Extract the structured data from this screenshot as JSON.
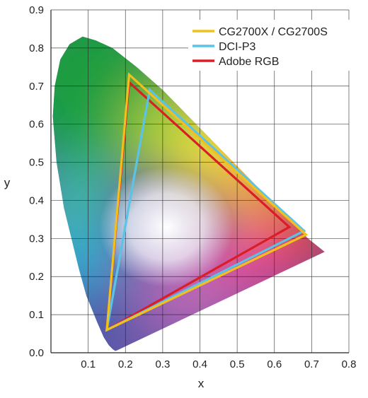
{
  "chart_data": {
    "type": "scatter",
    "title": "",
    "xlabel": "x",
    "ylabel": "y",
    "xlim": [
      0.0,
      0.8
    ],
    "ylim": [
      0.0,
      0.9
    ],
    "x_ticks": [
      0.1,
      0.2,
      0.3,
      0.4,
      0.5,
      0.6,
      0.7,
      0.8
    ],
    "y_ticks": [
      0.0,
      0.1,
      0.2,
      0.3,
      0.4,
      0.5,
      0.6,
      0.7,
      0.8,
      0.9
    ],
    "x_tick_labels": [
      "0.1",
      "0.2",
      "0.3",
      "0.4",
      "0.5",
      "0.6",
      "0.7",
      "0.8"
    ],
    "y_tick_labels": [
      "0.0",
      "0.1",
      "0.2",
      "0.3",
      "0.4",
      "0.5",
      "0.6",
      "0.7",
      "0.8",
      "0.9"
    ],
    "grid": true,
    "legend_position": "top-right",
    "spectral_locus": [
      [
        0.175,
        0.005
      ],
      [
        0.172,
        0.005
      ],
      [
        0.165,
        0.01
      ],
      [
        0.155,
        0.02
      ],
      [
        0.142,
        0.04
      ],
      [
        0.124,
        0.08
      ],
      [
        0.095,
        0.15
      ],
      [
        0.075,
        0.22
      ],
      [
        0.055,
        0.3
      ],
      [
        0.035,
        0.38
      ],
      [
        0.015,
        0.5
      ],
      [
        0.005,
        0.62
      ],
      [
        0.01,
        0.7
      ],
      [
        0.025,
        0.77
      ],
      [
        0.05,
        0.81
      ],
      [
        0.085,
        0.83
      ],
      [
        0.12,
        0.82
      ],
      [
        0.165,
        0.8
      ],
      [
        0.23,
        0.75
      ],
      [
        0.3,
        0.69
      ],
      [
        0.37,
        0.62
      ],
      [
        0.44,
        0.55
      ],
      [
        0.51,
        0.48
      ],
      [
        0.58,
        0.41
      ],
      [
        0.64,
        0.35
      ],
      [
        0.69,
        0.3
      ],
      [
        0.735,
        0.265
      ]
    ],
    "series": [
      {
        "name": "CG2700X / CG2700S",
        "color": "#f2c01e",
        "points": [
          [
            0.685,
            0.31
          ],
          [
            0.21,
            0.73
          ],
          [
            0.15,
            0.06
          ]
        ]
      },
      {
        "name": "DCI-P3",
        "color": "#5bc3e6",
        "points": [
          [
            0.68,
            0.32
          ],
          [
            0.265,
            0.69
          ],
          [
            0.15,
            0.06
          ]
        ]
      },
      {
        "name": "Adobe RGB",
        "color": "#d91e26",
        "points": [
          [
            0.64,
            0.33
          ],
          [
            0.21,
            0.71
          ],
          [
            0.15,
            0.06
          ]
        ]
      }
    ]
  }
}
